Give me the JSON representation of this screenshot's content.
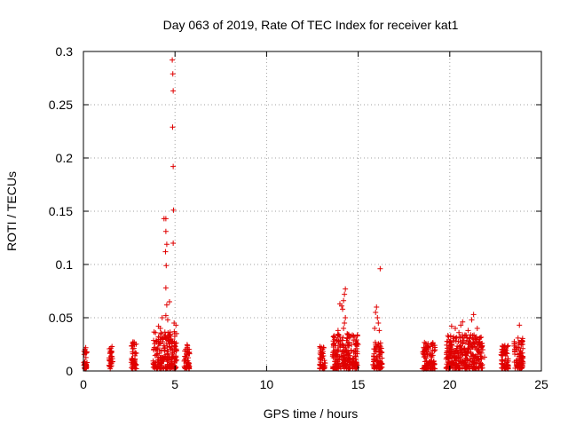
{
  "chart_data": {
    "type": "scatter",
    "title": "Day 063 of 2019, Rate Of TEC Index for receiver kat1",
    "xlabel": "GPS time / hours",
    "ylabel": "ROTI / TECUs",
    "xlim": [
      0,
      25
    ],
    "ylim": [
      0,
      0.3
    ],
    "xticks": [
      0,
      5,
      10,
      15,
      20,
      25
    ],
    "yticks": [
      0,
      0.05,
      0.1,
      0.15,
      0.2,
      0.25,
      0.3
    ],
    "xtick_labels": [
      "0",
      "5",
      "10",
      "15",
      "20",
      "25"
    ],
    "ytick_labels": [
      "0",
      "0.05",
      "0.1",
      "0.15",
      "0.2",
      "0.25",
      "0.3"
    ],
    "grid": true,
    "marker": "+",
    "color": "#e00000",
    "clusters": [
      {
        "x_range": [
          0.0,
          0.2
        ],
        "y_max": 0.02
      },
      {
        "x_range": [
          1.4,
          1.6
        ],
        "y_max": 0.021
      },
      {
        "x_range": [
          2.6,
          2.9
        ],
        "y_max": 0.026
      },
      {
        "x_range": [
          3.8,
          5.1
        ],
        "y_max": 0.035
      },
      {
        "x_range": [
          5.5,
          5.8
        ],
        "y_max": 0.024
      },
      {
        "x_range": [
          12.9,
          13.2
        ],
        "y_max": 0.024
      },
      {
        "x_range": [
          13.6,
          15.0
        ],
        "y_max": 0.034
      },
      {
        "x_range": [
          15.8,
          16.3
        ],
        "y_max": 0.025
      },
      {
        "x_range": [
          18.5,
          19.2
        ],
        "y_max": 0.025
      },
      {
        "x_range": [
          19.8,
          21.8
        ],
        "y_max": 0.032
      },
      {
        "x_range": [
          22.8,
          23.2
        ],
        "y_max": 0.022
      },
      {
        "x_range": [
          23.5,
          24.0
        ],
        "y_max": 0.03
      }
    ],
    "points": [
      [
        4.85,
        0.292
      ],
      [
        4.88,
        0.279
      ],
      [
        4.9,
        0.263
      ],
      [
        4.87,
        0.229
      ],
      [
        4.9,
        0.192
      ],
      [
        4.92,
        0.151
      ],
      [
        4.4,
        0.143
      ],
      [
        4.5,
        0.143
      ],
      [
        4.5,
        0.131
      ],
      [
        4.55,
        0.119
      ],
      [
        4.9,
        0.12
      ],
      [
        4.48,
        0.112
      ],
      [
        4.52,
        0.099
      ],
      [
        4.5,
        0.078
      ],
      [
        4.7,
        0.065
      ],
      [
        4.55,
        0.062
      ],
      [
        4.3,
        0.05
      ],
      [
        4.5,
        0.052
      ],
      [
        4.6,
        0.048
      ],
      [
        4.1,
        0.042
      ],
      [
        5.05,
        0.043
      ],
      [
        4.95,
        0.045
      ],
      [
        4.2,
        0.04
      ],
      [
        16.2,
        0.096
      ],
      [
        14.3,
        0.077
      ],
      [
        14.25,
        0.072
      ],
      [
        14.2,
        0.066
      ],
      [
        14.0,
        0.063
      ],
      [
        14.1,
        0.061
      ],
      [
        14.15,
        0.058
      ],
      [
        14.3,
        0.05
      ],
      [
        14.25,
        0.045
      ],
      [
        14.2,
        0.04
      ],
      [
        13.9,
        0.038
      ],
      [
        14.4,
        0.035
      ],
      [
        16.0,
        0.06
      ],
      [
        15.95,
        0.055
      ],
      [
        16.05,
        0.05
      ],
      [
        16.1,
        0.045
      ],
      [
        15.9,
        0.04
      ],
      [
        16.15,
        0.038
      ],
      [
        21.3,
        0.053
      ],
      [
        21.2,
        0.048
      ],
      [
        20.7,
        0.046
      ],
      [
        20.6,
        0.043
      ],
      [
        20.1,
        0.042
      ],
      [
        20.3,
        0.04
      ],
      [
        21.0,
        0.038
      ],
      [
        21.5,
        0.04
      ],
      [
        20.5,
        0.036
      ],
      [
        21.8,
        0.02
      ],
      [
        21.9,
        0.013
      ],
      [
        23.8,
        0.043
      ]
    ]
  }
}
